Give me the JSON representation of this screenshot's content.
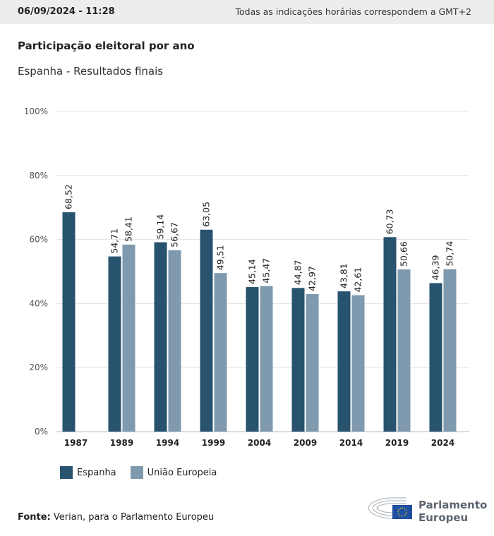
{
  "header": {
    "date": "06/09/2024 - 11:28",
    "timezone_note": "Todas as indicações horárias correspondem a GMT+2"
  },
  "title": "Participação eleitoral por ano",
  "subtitle": "Espanha - Resultados finais",
  "source_label": "Fonte:",
  "source_text": " Verian, para o Parlamento Europeu",
  "logo": {
    "text_line1": "Parlamento",
    "text_line2": "Europeu"
  },
  "chart_data": {
    "type": "bar",
    "categories": [
      "1987",
      "1989",
      "1994",
      "1999",
      "2004",
      "2009",
      "2014",
      "2019",
      "2024"
    ],
    "series": [
      {
        "name": "Espanha",
        "color": "#27536f",
        "values": [
          68.52,
          54.71,
          59.14,
          63.05,
          45.14,
          44.87,
          43.81,
          60.73,
          46.39
        ],
        "labels": [
          "68,52",
          "54,71",
          "59,14",
          "63,05",
          "45,14",
          "44,87",
          "43,81",
          "60,73",
          "46,39"
        ]
      },
      {
        "name": "União Europeia",
        "color": "#7f9aae",
        "values": [
          null,
          58.41,
          56.67,
          49.51,
          45.47,
          42.97,
          42.61,
          50.66,
          50.74
        ],
        "labels": [
          null,
          "58,41",
          "56,67",
          "49,51",
          "45,47",
          "42,97",
          "42,61",
          "50,66",
          "50,74"
        ]
      }
    ],
    "ylim": [
      0,
      100
    ],
    "yticks": [
      "0%",
      "20%",
      "40%",
      "60%",
      "80%",
      "100%"
    ],
    "grid": true,
    "legend": "bottom-left"
  }
}
